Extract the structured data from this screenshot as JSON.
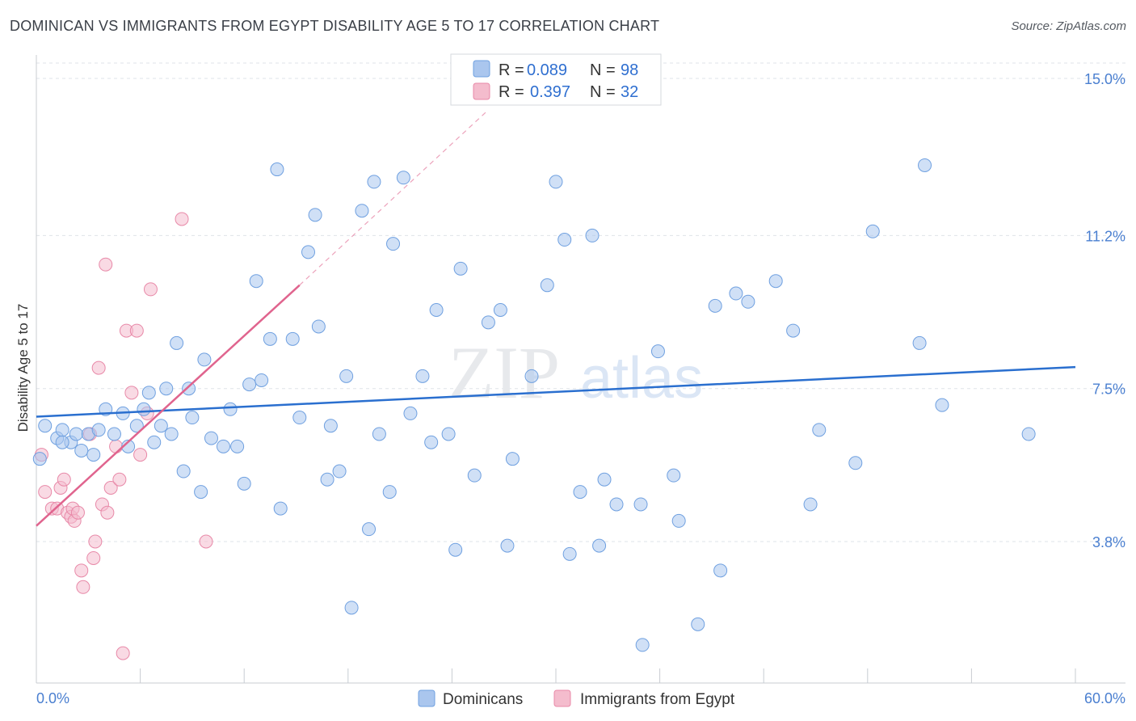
{
  "title": "DOMINICAN VS IMMIGRANTS FROM EGYPT DISABILITY AGE 5 TO 17 CORRELATION CHART",
  "source": "Source: ZipAtlas.com",
  "colors": {
    "blue": "#6fa0e0",
    "blue_fill": "#aac6ee",
    "blue_line": "#2a6fcf",
    "pink": "#e889a8",
    "pink_fill": "#f4bccd",
    "pink_line": "#e0648e",
    "grid": "#dfe3e8",
    "axis_text": "#4a7fd0"
  },
  "legend": {
    "rows": [
      {
        "r_label": "R = ",
        "r_value": "0.089",
        "n_label": "N = ",
        "n_value": "98"
      },
      {
        "r_label": "R = ",
        "r_value": "0.397",
        "n_label": "N = ",
        "n_value": "32"
      }
    ]
  },
  "bottom_legend": [
    "Dominicans",
    "Immigrants from Egypt"
  ],
  "watermark": {
    "zip": "ZIP",
    "atlas": "atlas"
  },
  "chart_data": {
    "type": "scatter",
    "title": "DOMINICAN VS IMMIGRANTS FROM EGYPT DISABILITY AGE 5 TO 17 CORRELATION CHART",
    "xlabel": "",
    "ylabel": "Disability Age 5 to 17",
    "xlim": [
      0,
      60
    ],
    "ylim": [
      0,
      15.0
    ],
    "x_tick_labels": [
      "0.0%",
      "60.0%"
    ],
    "y_ticks": [
      3.8,
      7.5,
      11.2,
      15.0
    ],
    "y_tick_labels": [
      "3.8%",
      "7.5%",
      "11.2%",
      "15.0%"
    ],
    "grid": true,
    "series": [
      {
        "name": "Dominicans",
        "R": 0.089,
        "N": 98,
        "trend": {
          "x": [
            0,
            60
          ],
          "y": [
            6.82,
            8.02
          ]
        },
        "points": [
          [
            1.2,
            6.3
          ],
          [
            0.5,
            6.6
          ],
          [
            1.5,
            6.5
          ],
          [
            2.0,
            6.2
          ],
          [
            2.3,
            6.4
          ],
          [
            2.6,
            6.0
          ],
          [
            3.0,
            6.4
          ],
          [
            3.3,
            5.9
          ],
          [
            3.6,
            6.5
          ],
          [
            4.0,
            7.0
          ],
          [
            4.5,
            6.4
          ],
          [
            5.0,
            6.9
          ],
          [
            5.3,
            6.1
          ],
          [
            5.8,
            6.6
          ],
          [
            6.2,
            7.0
          ],
          [
            6.5,
            7.4
          ],
          [
            6.8,
            6.2
          ],
          [
            7.2,
            6.6
          ],
          [
            7.5,
            7.5
          ],
          [
            7.8,
            6.4
          ],
          [
            8.1,
            8.6
          ],
          [
            8.5,
            5.5
          ],
          [
            8.8,
            7.5
          ],
          [
            9.0,
            6.8
          ],
          [
            9.5,
            5.0
          ],
          [
            9.7,
            8.2
          ],
          [
            10.1,
            6.3
          ],
          [
            10.8,
            6.1
          ],
          [
            11.2,
            7.0
          ],
          [
            11.6,
            6.1
          ],
          [
            12.0,
            5.2
          ],
          [
            12.3,
            7.6
          ],
          [
            12.7,
            10.1
          ],
          [
            13.0,
            7.7
          ],
          [
            13.5,
            8.7
          ],
          [
            13.9,
            12.8
          ],
          [
            14.1,
            4.6
          ],
          [
            14.8,
            8.7
          ],
          [
            15.2,
            6.8
          ],
          [
            15.7,
            10.8
          ],
          [
            16.1,
            11.7
          ],
          [
            16.3,
            9.0
          ],
          [
            16.8,
            5.3
          ],
          [
            17.0,
            6.6
          ],
          [
            17.5,
            5.5
          ],
          [
            17.9,
            7.8
          ],
          [
            18.2,
            2.2
          ],
          [
            18.8,
            11.8
          ],
          [
            19.2,
            4.1
          ],
          [
            19.5,
            12.5
          ],
          [
            19.8,
            6.4
          ],
          [
            20.4,
            5.0
          ],
          [
            20.6,
            11.0
          ],
          [
            21.2,
            12.6
          ],
          [
            21.6,
            6.9
          ],
          [
            22.3,
            7.8
          ],
          [
            22.8,
            6.2
          ],
          [
            23.1,
            9.4
          ],
          [
            23.8,
            6.4
          ],
          [
            24.2,
            3.6
          ],
          [
            24.5,
            10.4
          ],
          [
            25.3,
            5.4
          ],
          [
            26.1,
            9.1
          ],
          [
            26.8,
            9.4
          ],
          [
            27.2,
            3.7
          ],
          [
            27.5,
            5.8
          ],
          [
            28.6,
            7.8
          ],
          [
            29.5,
            10.0
          ],
          [
            30.0,
            12.5
          ],
          [
            30.5,
            11.1
          ],
          [
            30.8,
            3.5
          ],
          [
            31.4,
            5.0
          ],
          [
            32.1,
            11.2
          ],
          [
            32.5,
            3.7
          ],
          [
            32.8,
            5.3
          ],
          [
            33.5,
            4.7
          ],
          [
            34.9,
            4.7
          ],
          [
            35.0,
            1.3
          ],
          [
            35.9,
            8.4
          ],
          [
            36.8,
            5.4
          ],
          [
            37.1,
            4.3
          ],
          [
            38.2,
            1.8
          ],
          [
            39.2,
            9.5
          ],
          [
            39.5,
            3.1
          ],
          [
            40.4,
            9.8
          ],
          [
            41.1,
            9.6
          ],
          [
            42.7,
            10.1
          ],
          [
            43.7,
            8.9
          ],
          [
            44.7,
            4.7
          ],
          [
            45.2,
            6.5
          ],
          [
            47.3,
            5.7
          ],
          [
            48.3,
            11.3
          ],
          [
            51.0,
            8.6
          ],
          [
            51.3,
            12.9
          ],
          [
            52.3,
            7.1
          ],
          [
            57.3,
            6.4
          ],
          [
            0.2,
            5.8
          ],
          [
            1.5,
            6.2
          ]
        ]
      },
      {
        "name": "Immigrants from Egypt",
        "R": 0.397,
        "N": 32,
        "trend": {
          "x": [
            0,
            15.2
          ],
          "y": [
            4.18,
            10.0
          ]
        },
        "trend_dashed": {
          "x": [
            15.2,
            26
          ],
          "y": [
            10.0,
            14.2
          ]
        },
        "points": [
          [
            0.3,
            5.9
          ],
          [
            0.5,
            5.0
          ],
          [
            0.9,
            4.6
          ],
          [
            1.2,
            4.6
          ],
          [
            1.4,
            5.1
          ],
          [
            1.6,
            5.3
          ],
          [
            1.8,
            4.5
          ],
          [
            2.0,
            4.4
          ],
          [
            2.1,
            4.6
          ],
          [
            2.2,
            4.3
          ],
          [
            2.4,
            4.5
          ],
          [
            2.6,
            3.1
          ],
          [
            2.7,
            2.7
          ],
          [
            3.1,
            6.4
          ],
          [
            3.3,
            3.4
          ],
          [
            3.4,
            3.8
          ],
          [
            3.6,
            8.0
          ],
          [
            3.8,
            4.7
          ],
          [
            4.0,
            10.5
          ],
          [
            4.3,
            5.1
          ],
          [
            4.6,
            6.1
          ],
          [
            4.8,
            5.3
          ],
          [
            5.0,
            1.1
          ],
          [
            5.2,
            8.9
          ],
          [
            5.5,
            7.4
          ],
          [
            5.8,
            8.9
          ],
          [
            6.0,
            5.9
          ],
          [
            6.4,
            6.9
          ],
          [
            6.6,
            9.9
          ],
          [
            8.4,
            11.6
          ],
          [
            9.8,
            3.8
          ],
          [
            4.1,
            4.5
          ]
        ]
      }
    ]
  }
}
